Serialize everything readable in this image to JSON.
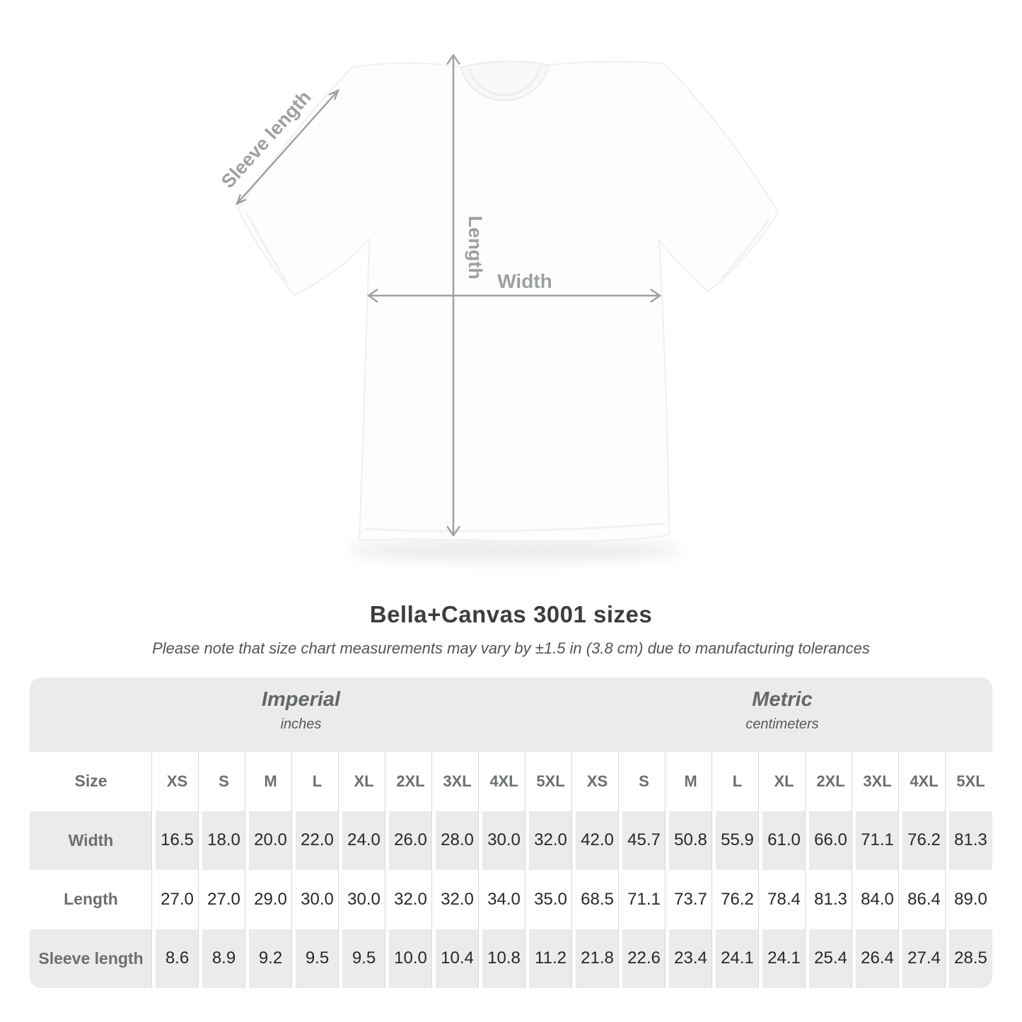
{
  "title": "Bella+Canvas 3001 sizes",
  "subtitle": "Please note that size chart measurements may vary by ±1.5 in (3.8 cm) due to manufacturing tolerances",
  "diagram": {
    "sleeve_label": "Sleeve length",
    "length_label": "Length",
    "width_label": "Width"
  },
  "table": {
    "imperial_header": "Imperial",
    "imperial_sub": "inches",
    "metric_header": "Metric",
    "metric_sub": "centimeters",
    "size_label": "Size",
    "sizes": [
      "XS",
      "S",
      "M",
      "L",
      "XL",
      "2XL",
      "3XL",
      "4XL",
      "5XL"
    ],
    "rows": [
      {
        "label": "Width",
        "imperial": [
          "16.5",
          "18.0",
          "20.0",
          "22.0",
          "24.0",
          "26.0",
          "28.0",
          "30.0",
          "32.0"
        ],
        "metric": [
          "42.0",
          "45.7",
          "50.8",
          "55.9",
          "61.0",
          "66.0",
          "71.1",
          "76.2",
          "81.3"
        ]
      },
      {
        "label": "Length",
        "imperial": [
          "27.0",
          "27.0",
          "29.0",
          "30.0",
          "30.0",
          "32.0",
          "32.0",
          "34.0",
          "35.0"
        ],
        "metric": [
          "68.5",
          "71.1",
          "73.7",
          "76.2",
          "78.4",
          "81.3",
          "84.0",
          "86.4",
          "89.0"
        ]
      },
      {
        "label": "Sleeve length",
        "imperial": [
          "8.6",
          "8.9",
          "9.2",
          "9.5",
          "9.5",
          "10.0",
          "10.4",
          "10.8",
          "11.2"
        ],
        "metric": [
          "21.8",
          "22.6",
          "23.4",
          "24.1",
          "24.1",
          "25.4",
          "26.4",
          "27.4",
          "28.5"
        ]
      }
    ]
  },
  "colors": {
    "table_gray": "#ebebeb",
    "separator_gray": "#d9d9d9",
    "label_gray": "#6b6f72",
    "value_dark": "#26282a",
    "arrow_gray": "#9ca0a2",
    "title_dark": "#3b3e41"
  },
  "chart_data": {
    "type": "table",
    "title": "Bella+Canvas 3001 sizes",
    "note": "Size chart measurements may vary by ±1.5 in (3.8 cm) due to manufacturing tolerances",
    "categories": [
      "XS",
      "S",
      "M",
      "L",
      "XL",
      "2XL",
      "3XL",
      "4XL",
      "5XL"
    ],
    "series": [
      {
        "name": "Width (inches)",
        "values": [
          16.5,
          18.0,
          20.0,
          22.0,
          24.0,
          26.0,
          28.0,
          30.0,
          32.0
        ]
      },
      {
        "name": "Length (inches)",
        "values": [
          27.0,
          27.0,
          29.0,
          30.0,
          30.0,
          32.0,
          32.0,
          34.0,
          35.0
        ]
      },
      {
        "name": "Sleeve length (inches)",
        "values": [
          8.6,
          8.9,
          9.2,
          9.5,
          9.5,
          10.0,
          10.4,
          10.8,
          11.2
        ]
      },
      {
        "name": "Width (centimeters)",
        "values": [
          42.0,
          45.7,
          50.8,
          55.9,
          61.0,
          66.0,
          71.1,
          76.2,
          81.3
        ]
      },
      {
        "name": "Length (centimeters)",
        "values": [
          68.5,
          71.1,
          73.7,
          76.2,
          78.4,
          81.3,
          84.0,
          86.4,
          89.0
        ]
      },
      {
        "name": "Sleeve length (centimeters)",
        "values": [
          21.8,
          22.6,
          23.4,
          24.1,
          24.1,
          25.4,
          26.4,
          27.4,
          28.5
        ]
      }
    ]
  }
}
